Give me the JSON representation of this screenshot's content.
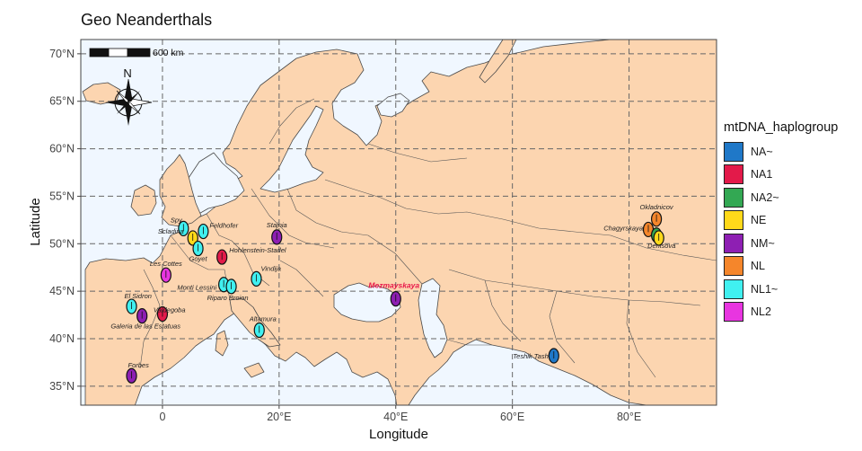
{
  "title": "Geo Neanderthals",
  "axes": {
    "xlabel": "Longitude",
    "ylabel": "Latitude",
    "xticks": [
      "0",
      "20°E",
      "40°E",
      "60°E",
      "80°E"
    ],
    "yticks": [
      "35°N",
      "40°N",
      "45°N",
      "50°N",
      "55°N",
      "60°N",
      "65°N",
      "70°N"
    ]
  },
  "scalebar": {
    "label": "600 km"
  },
  "north_arrow": {
    "label": "N"
  },
  "legend": {
    "title": "mtDNA_haplogroup",
    "items": [
      {
        "label": "NA~",
        "color": "#1f78c8"
      },
      {
        "label": "NA1",
        "color": "#e31a4a"
      },
      {
        "label": "NA2~",
        "color": "#33a853"
      },
      {
        "label": "NE",
        "color": "#ffd91a"
      },
      {
        "label": "NM~",
        "color": "#8e1fb3"
      },
      {
        "label": "NL",
        "color": "#f5862b"
      },
      {
        "label": "NL1~",
        "color": "#40f0f0"
      },
      {
        "label": "NL2",
        "color": "#e835e0"
      }
    ]
  },
  "colors": {
    "land": "#fcd5b0",
    "water": "#f0f7ff",
    "border": "#444444"
  },
  "chart_data": {
    "type": "scatter",
    "xlim": [
      -14,
      95
    ],
    "ylim": [
      33,
      71.5
    ],
    "points": [
      {
        "name": "Spy",
        "lon": 3.6,
        "lat": 51.6,
        "group": "NL1~",
        "label": "Spy"
      },
      {
        "name": "Scladina",
        "lon": 5.2,
        "lat": 50.6,
        "group": "NE",
        "label": "Scladina"
      },
      {
        "name": "Feldhofer",
        "lon": 7.0,
        "lat": 51.3,
        "group": "NL1~",
        "label": "Feldhofer"
      },
      {
        "name": "Goyet",
        "lon": 6.1,
        "lat": 49.5,
        "group": "NL1~",
        "label": "Goyet"
      },
      {
        "name": "Hohlenstein-Stadel",
        "lon": 10.2,
        "lat": 48.6,
        "group": "NA1",
        "label": "Hohlenstein-Stadel"
      },
      {
        "name": "Stajnia",
        "lon": 19.6,
        "lat": 50.7,
        "group": "NM~",
        "label": "Stajnia"
      },
      {
        "name": "Les Cottes",
        "lon": 0.6,
        "lat": 46.7,
        "group": "NL2",
        "label": "Les Cottes"
      },
      {
        "name": "Vindija",
        "lon": 16.1,
        "lat": 46.3,
        "group": "NL1~",
        "label": "Vindija"
      },
      {
        "name": "Monti Lessini",
        "lon": 10.5,
        "lat": 45.7,
        "group": "NL1~",
        "label": "Monti Lessini"
      },
      {
        "name": "Riparo Broion",
        "lon": 11.8,
        "lat": 45.5,
        "group": "NL1~",
        "label": "Riparo Broion"
      },
      {
        "name": "El Sidron",
        "lon": -5.3,
        "lat": 43.4,
        "group": "NL1~",
        "label": "El Sidron"
      },
      {
        "name": "Galeria de las Estatuas",
        "lon": -3.5,
        "lat": 42.4,
        "group": "NM~",
        "label": "Galeria de las Estatuas"
      },
      {
        "name": "Valdegoba",
        "lon": 0.0,
        "lat": 42.6,
        "group": "NA1",
        "label": "Valdegoba"
      },
      {
        "name": "Altamura",
        "lon": 16.6,
        "lat": 40.9,
        "group": "NL1~",
        "label": "Altamura"
      },
      {
        "name": "Forbes",
        "lon": -5.3,
        "lat": 36.1,
        "group": "NM~",
        "label": "Forbes"
      },
      {
        "name": "Mezmayskaya",
        "lon": 40.0,
        "lat": 44.2,
        "group": "NM~",
        "label": "Mezmayskaya",
        "highlight": true
      },
      {
        "name": "Teshik Tash",
        "lon": 67.1,
        "lat": 38.2,
        "group": "NA~",
        "label": "Teshik Tash"
      },
      {
        "name": "Okladnicov",
        "lon": 84.7,
        "lat": 52.6,
        "group": "NL",
        "label": "Okladnicov"
      },
      {
        "name": "Chagyrskaya",
        "lon": 83.3,
        "lat": 51.5,
        "group": "NL",
        "label": "Chagyrskaya"
      },
      {
        "name": "Denisova",
        "lon": 84.7,
        "lat": 50.9,
        "group": "NA2~",
        "label": "Denisova"
      },
      {
        "name": "Denisova-2",
        "lon": 85.1,
        "lat": 50.6,
        "group": "NE",
        "label": ""
      }
    ]
  }
}
